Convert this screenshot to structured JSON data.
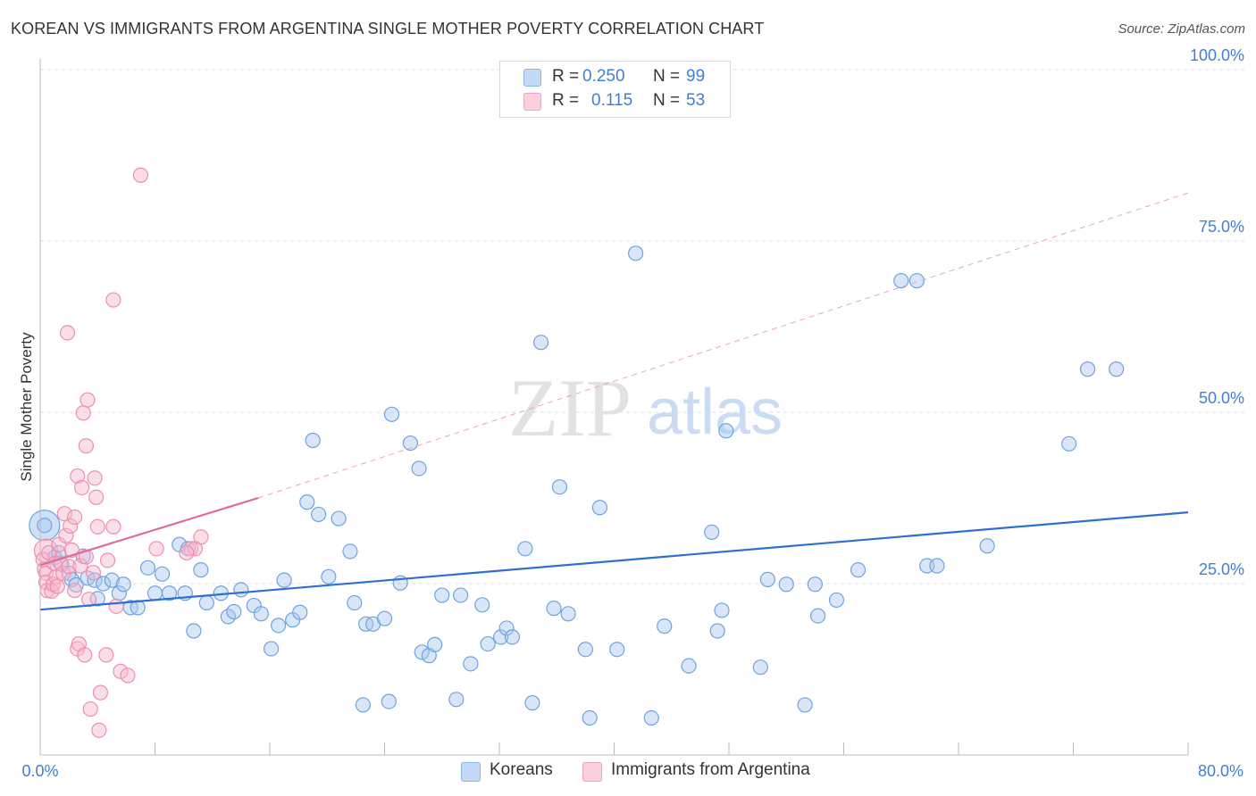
{
  "title": "KOREAN VS IMMIGRANTS FROM ARGENTINA SINGLE MOTHER POVERTY CORRELATION CHART",
  "source": "Source: ZipAtlas.com",
  "watermark": {
    "zip": "ZIP",
    "atlas": "atlas"
  },
  "legend": {
    "rows": [
      {
        "r_label": "R = ",
        "r_value": "0.250",
        "n_label": "N = ",
        "n_value": "99",
        "color": "#a9c8f0"
      },
      {
        "r_label": "R = ",
        "r_value": "0.115",
        "n_label": "N = ",
        "n_value": "53",
        "color": "#f6b8cc"
      }
    ]
  },
  "bottom_legend": [
    {
      "label": "Koreans",
      "color": "#a9c8f0"
    },
    {
      "label": "Immigrants from Argentina",
      "color": "#f6b8cc"
    }
  ],
  "chart_data": {
    "type": "scatter",
    "ylabel": "Single Mother Poverty",
    "xlim": [
      0,
      80
    ],
    "ylim": [
      0,
      100
    ],
    "x_tick_labels": [
      "0.0%",
      "80.0%"
    ],
    "y_tick_labels": [
      "25.0%",
      "50.0%",
      "75.0%",
      "100.0%"
    ],
    "y_ticks": [
      25,
      50,
      75,
      100
    ],
    "grid": true,
    "series": [
      {
        "name": "Koreans",
        "color": "#6fa3e0",
        "fill": "#a9c8f0",
        "line_color": "#2f6fcf",
        "trend": {
          "x0": 0,
          "y0": 21.2,
          "x1": 80,
          "y1": 35.4
        },
        "points": [
          [
            0.3,
            33.5
          ],
          [
            1.0,
            28.8
          ],
          [
            1.3,
            29.5
          ],
          [
            1.5,
            27.8
          ],
          [
            2.0,
            26.5
          ],
          [
            2.2,
            25.6
          ],
          [
            2.5,
            24.8
          ],
          [
            3.0,
            29.0
          ],
          [
            3.3,
            25.8
          ],
          [
            3.8,
            25.5
          ],
          [
            4.0,
            22.8
          ],
          [
            4.4,
            25.0
          ],
          [
            5.0,
            25.5
          ],
          [
            5.5,
            23.6
          ],
          [
            5.8,
            24.9
          ],
          [
            6.3,
            21.5
          ],
          [
            6.8,
            21.5
          ],
          [
            7.5,
            27.3
          ],
          [
            8.0,
            23.6
          ],
          [
            8.5,
            26.4
          ],
          [
            9.0,
            23.6
          ],
          [
            9.7,
            30.7
          ],
          [
            10.1,
            23.6
          ],
          [
            10.3,
            30.1
          ],
          [
            10.7,
            18.1
          ],
          [
            11.2,
            27.0
          ],
          [
            11.6,
            22.2
          ],
          [
            12.6,
            23.6
          ],
          [
            13.1,
            20.2
          ],
          [
            13.5,
            20.9
          ],
          [
            14.0,
            24.1
          ],
          [
            14.9,
            21.8
          ],
          [
            15.4,
            20.6
          ],
          [
            16.1,
            15.5
          ],
          [
            16.6,
            18.9
          ],
          [
            17.0,
            25.5
          ],
          [
            17.6,
            19.7
          ],
          [
            18.1,
            20.8
          ],
          [
            18.6,
            36.9
          ],
          [
            19.0,
            45.9
          ],
          [
            19.4,
            35.1
          ],
          [
            20.1,
            26.0
          ],
          [
            20.8,
            34.5
          ],
          [
            21.6,
            29.7
          ],
          [
            21.9,
            22.2
          ],
          [
            22.5,
            7.3
          ],
          [
            22.7,
            19.1
          ],
          [
            23.2,
            19.1
          ],
          [
            24.0,
            19.9
          ],
          [
            24.3,
            7.8
          ],
          [
            24.5,
            49.7
          ],
          [
            25.1,
            25.1
          ],
          [
            25.8,
            45.5
          ],
          [
            26.4,
            41.8
          ],
          [
            26.6,
            15.0
          ],
          [
            27.1,
            14.5
          ],
          [
            27.5,
            16.1
          ],
          [
            28.0,
            23.3
          ],
          [
            29.0,
            8.1
          ],
          [
            29.3,
            23.3
          ],
          [
            30.0,
            13.3
          ],
          [
            30.8,
            21.9
          ],
          [
            31.2,
            16.2
          ],
          [
            32.1,
            17.2
          ],
          [
            32.5,
            18.5
          ],
          [
            32.9,
            17.2
          ],
          [
            33.8,
            30.1
          ],
          [
            34.3,
            7.6
          ],
          [
            34.9,
            60.2
          ],
          [
            35.8,
            21.4
          ],
          [
            36.2,
            39.1
          ],
          [
            36.8,
            20.6
          ],
          [
            38.0,
            15.4
          ],
          [
            38.3,
            5.4
          ],
          [
            39.0,
            36.1
          ],
          [
            40.2,
            15.4
          ],
          [
            41.5,
            73.2
          ],
          [
            42.6,
            5.4
          ],
          [
            43.5,
            18.8
          ],
          [
            45.2,
            13.0
          ],
          [
            46.8,
            32.5
          ],
          [
            47.2,
            18.1
          ],
          [
            47.5,
            21.1
          ],
          [
            47.8,
            47.3
          ],
          [
            50.2,
            12.8
          ],
          [
            50.7,
            25.6
          ],
          [
            52.0,
            24.9
          ],
          [
            53.3,
            7.3
          ],
          [
            54.0,
            24.9
          ],
          [
            54.2,
            20.3
          ],
          [
            55.5,
            22.6
          ],
          [
            57.0,
            27.0
          ],
          [
            60.0,
            69.2
          ],
          [
            61.1,
            69.2
          ],
          [
            61.8,
            27.6
          ],
          [
            62.5,
            27.6
          ],
          [
            66.0,
            30.5
          ],
          [
            71.7,
            45.4
          ],
          [
            73.0,
            56.3
          ],
          [
            75.0,
            56.3
          ]
        ]
      },
      {
        "name": "Immigrants from Argentina",
        "color": "#ee8fae",
        "fill": "#f6b8cc",
        "line_color": "#e06b94",
        "trend": {
          "x0": 0,
          "y0": 27.7,
          "x1": 15.2,
          "y1": 37.5
        },
        "trend_ext": {
          "x0": 15.2,
          "y0": 37.5,
          "x1": 80,
          "y1": 82.0
        },
        "points": [
          [
            0.2,
            28.5
          ],
          [
            0.3,
            27.1
          ],
          [
            0.4,
            26.5
          ],
          [
            0.4,
            25.2
          ],
          [
            0.5,
            24.0
          ],
          [
            0.6,
            29.5
          ],
          [
            0.8,
            23.9
          ],
          [
            0.9,
            24.9
          ],
          [
            1.0,
            27.9
          ],
          [
            1.1,
            26.0
          ],
          [
            1.2,
            24.6
          ],
          [
            1.3,
            30.7
          ],
          [
            1.4,
            28.0
          ],
          [
            1.6,
            26.5
          ],
          [
            1.7,
            35.2
          ],
          [
            1.8,
            32.0
          ],
          [
            1.9,
            61.6
          ],
          [
            2.0,
            27.5
          ],
          [
            2.1,
            33.4
          ],
          [
            2.2,
            29.9
          ],
          [
            2.4,
            24.0
          ],
          [
            2.4,
            34.7
          ],
          [
            2.6,
            40.7
          ],
          [
            2.6,
            15.5
          ],
          [
            2.7,
            16.2
          ],
          [
            2.8,
            27.6
          ],
          [
            2.9,
            39.0
          ],
          [
            3.0,
            49.9
          ],
          [
            3.1,
            14.6
          ],
          [
            3.2,
            28.9
          ],
          [
            3.2,
            45.1
          ],
          [
            3.3,
            51.8
          ],
          [
            3.4,
            22.7
          ],
          [
            3.5,
            6.7
          ],
          [
            3.7,
            26.6
          ],
          [
            3.8,
            40.4
          ],
          [
            3.9,
            37.6
          ],
          [
            4.0,
            33.3
          ],
          [
            4.1,
            3.6
          ],
          [
            4.2,
            9.1
          ],
          [
            4.6,
            14.6
          ],
          [
            4.7,
            28.4
          ],
          [
            5.1,
            66.4
          ],
          [
            5.1,
            33.3
          ],
          [
            5.3,
            21.7
          ],
          [
            5.6,
            12.2
          ],
          [
            6.1,
            11.6
          ],
          [
            7.0,
            84.6
          ],
          [
            8.1,
            30.1
          ],
          [
            10.5,
            30.1
          ],
          [
            10.8,
            30.1
          ],
          [
            11.2,
            31.8
          ],
          [
            10.2,
            29.5
          ]
        ]
      }
    ]
  }
}
